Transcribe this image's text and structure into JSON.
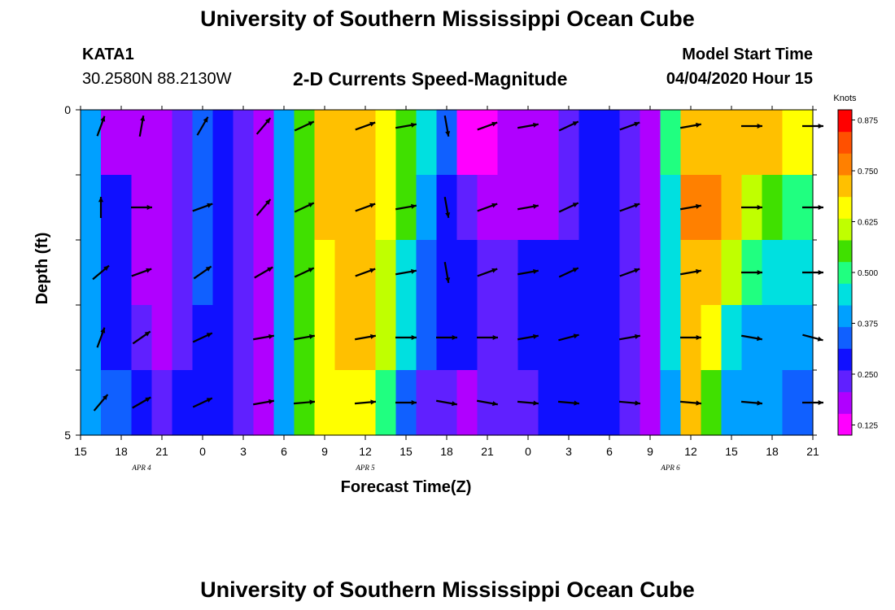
{
  "header": {
    "title": "University of Southern Mississippi Ocean Cube",
    "station_id": "KATA1",
    "station_coords": "30.2580N 88.2130W",
    "plot_subtitle": "2-D Currents Speed-Magnitude",
    "model_label": "Model Start Time",
    "model_time": "04/04/2020 Hour 15"
  },
  "footer": {
    "title": "University of Southern Mississippi Ocean Cube"
  },
  "colors": {
    "palette": [
      "#ff00ff",
      "#b000ff",
      "#6020ff",
      "#1010ff",
      "#1060ff",
      "#00a0ff",
      "#00e0e0",
      "#20ff80",
      "#40e000",
      "#c0ff00",
      "#ffff00",
      "#ffc000",
      "#ff8000",
      "#ff5000",
      "#ff0000"
    ],
    "arrow": "#000000",
    "axis": "#000000"
  },
  "chart_data": {
    "type": "heatmap",
    "title": "2-D Currents Speed-Magnitude",
    "xlabel": "Forecast Time(Z)",
    "ylabel": "Depth (ft)",
    "x_tick_labels": [
      "15",
      "18",
      "21",
      "0",
      "3",
      "6",
      "9",
      "12",
      "15",
      "18",
      "21",
      "0",
      "3",
      "6",
      "9",
      "12",
      "15",
      "18",
      "21"
    ],
    "date_labels": [
      {
        "label": "APR 4",
        "tick_index": 1.5
      },
      {
        "label": "APR 5",
        "tick_index": 7
      },
      {
        "label": "APR 6",
        "tick_index": 14.5
      }
    ],
    "xlim_hours": [
      0,
      54
    ],
    "y_tick_labels": [
      "0",
      "",
      "",
      "",
      "",
      "5"
    ],
    "ylim_ft": [
      0,
      5
    ],
    "n_depth_levels": 5,
    "colorbar": {
      "label": "Knots",
      "range": [
        0.1,
        0.9
      ],
      "ticks": [
        0.125,
        0.25,
        0.375,
        0.5,
        0.625,
        0.75,
        0.875
      ],
      "tick_labels": [
        "0.125",
        "0.250",
        "0.375",
        "0.500",
        "0.625",
        "0.750",
        "0.875"
      ]
    },
    "speed_profile_time_hours": [
      0,
      3,
      4.5,
      6,
      7.5,
      9,
      10.5,
      12,
      13.5,
      15,
      16.5,
      18,
      19.5,
      21,
      22.5,
      24,
      25.5,
      27,
      28.5,
      30,
      31.5,
      33,
      34.5,
      36,
      37.5,
      39,
      40.5,
      42,
      43.5,
      45,
      46.5,
      48,
      49.5,
      51,
      52.5,
      54
    ],
    "speed_profile_knots": [
      [
        0.37,
        0.2,
        0.18,
        0.18,
        0.25,
        0.33,
        0.27,
        0.22,
        0.2,
        0.4,
        0.55,
        0.7,
        0.72,
        0.7,
        0.68,
        0.55,
        0.45,
        0.32,
        0.15,
        0.1,
        0.18,
        0.2,
        0.18,
        0.25,
        0.3,
        0.28,
        0.22,
        0.18,
        0.5,
        0.72,
        0.74,
        0.73,
        0.72,
        0.7,
        0.68,
        0.66
      ],
      [
        0.37,
        0.28,
        0.18,
        0.18,
        0.25,
        0.32,
        0.27,
        0.22,
        0.2,
        0.4,
        0.55,
        0.7,
        0.72,
        0.7,
        0.68,
        0.55,
        0.42,
        0.3,
        0.25,
        0.18,
        0.18,
        0.18,
        0.2,
        0.25,
        0.3,
        0.28,
        0.22,
        0.18,
        0.45,
        0.75,
        0.76,
        0.74,
        0.62,
        0.55,
        0.52,
        0.5
      ],
      [
        0.37,
        0.28,
        0.18,
        0.18,
        0.25,
        0.32,
        0.27,
        0.22,
        0.2,
        0.4,
        0.55,
        0.68,
        0.7,
        0.7,
        0.6,
        0.45,
        0.32,
        0.3,
        0.28,
        0.25,
        0.25,
        0.28,
        0.3,
        0.3,
        0.3,
        0.28,
        0.22,
        0.18,
        0.45,
        0.7,
        0.72,
        0.6,
        0.48,
        0.45,
        0.45,
        0.43
      ],
      [
        0.37,
        0.3,
        0.23,
        0.2,
        0.25,
        0.3,
        0.27,
        0.22,
        0.2,
        0.4,
        0.55,
        0.68,
        0.7,
        0.7,
        0.6,
        0.45,
        0.32,
        0.3,
        0.28,
        0.25,
        0.25,
        0.28,
        0.3,
        0.3,
        0.3,
        0.28,
        0.22,
        0.18,
        0.45,
        0.7,
        0.68,
        0.45,
        0.42,
        0.4,
        0.4,
        0.38
      ],
      [
        0.37,
        0.32,
        0.27,
        0.22,
        0.28,
        0.3,
        0.27,
        0.22,
        0.2,
        0.4,
        0.55,
        0.66,
        0.68,
        0.65,
        0.5,
        0.35,
        0.25,
        0.22,
        0.2,
        0.22,
        0.22,
        0.25,
        0.28,
        0.3,
        0.3,
        0.28,
        0.22,
        0.18,
        0.4,
        0.7,
        0.55,
        0.42,
        0.38,
        0.38,
        0.36,
        0.32
      ]
    ],
    "arrows_time_hours": [
      1.5,
      4.5,
      9,
      13.5,
      16.5,
      21,
      24,
      27,
      30,
      33,
      36,
      40.5,
      45,
      49.5,
      54
    ],
    "arrows": [
      [
        [
          -70,
          1
        ],
        [
          -80,
          1
        ],
        [
          -60,
          1
        ],
        [
          -50,
          1
        ],
        [
          -25,
          1
        ],
        [
          -20,
          1
        ],
        [
          -10,
          1
        ],
        [
          80,
          1
        ],
        [
          -20,
          1
        ],
        [
          -10,
          1
        ],
        [
          -25,
          1
        ],
        [
          -20,
          1
        ],
        [
          -10,
          1
        ],
        [
          0,
          1
        ],
        [
          0,
          1
        ]
      ],
      [
        [
          -90,
          1
        ],
        [
          0,
          1
        ],
        [
          -20,
          1
        ],
        [
          -50,
          1
        ],
        [
          -25,
          1
        ],
        [
          -20,
          1
        ],
        [
          -10,
          1
        ],
        [
          80,
          1
        ],
        [
          -20,
          1
        ],
        [
          -10,
          1
        ],
        [
          -25,
          1
        ],
        [
          -20,
          1
        ],
        [
          -10,
          1
        ],
        [
          0,
          1
        ],
        [
          0,
          1
        ]
      ],
      [
        [
          -40,
          1
        ],
        [
          -20,
          1
        ],
        [
          -35,
          1
        ],
        [
          -30,
          1
        ],
        [
          -25,
          1
        ],
        [
          -20,
          1
        ],
        [
          -10,
          1
        ],
        [
          80,
          1
        ],
        [
          -20,
          1
        ],
        [
          -10,
          1
        ],
        [
          -25,
          1
        ],
        [
          -20,
          1
        ],
        [
          -10,
          1
        ],
        [
          0,
          1
        ],
        [
          0,
          1
        ]
      ],
      [
        [
          -70,
          1
        ],
        [
          -35,
          1
        ],
        [
          -25,
          1
        ],
        [
          -10,
          1
        ],
        [
          -10,
          1
        ],
        [
          -10,
          1
        ],
        [
          0,
          1
        ],
        [
          0,
          1
        ],
        [
          0,
          1
        ],
        [
          -10,
          1
        ],
        [
          -15,
          1
        ],
        [
          -10,
          1
        ],
        [
          0,
          1
        ],
        [
          10,
          1
        ],
        [
          15,
          1
        ]
      ],
      [
        [
          -50,
          1
        ],
        [
          -30,
          1
        ],
        [
          -25,
          1
        ],
        [
          -10,
          1
        ],
        [
          -5,
          1
        ],
        [
          -5,
          1
        ],
        [
          0,
          1
        ],
        [
          10,
          1
        ],
        [
          10,
          1
        ],
        [
          5,
          1
        ],
        [
          5,
          1
        ],
        [
          5,
          1
        ],
        [
          5,
          1
        ],
        [
          5,
          1
        ],
        [
          0,
          1
        ]
      ]
    ]
  }
}
